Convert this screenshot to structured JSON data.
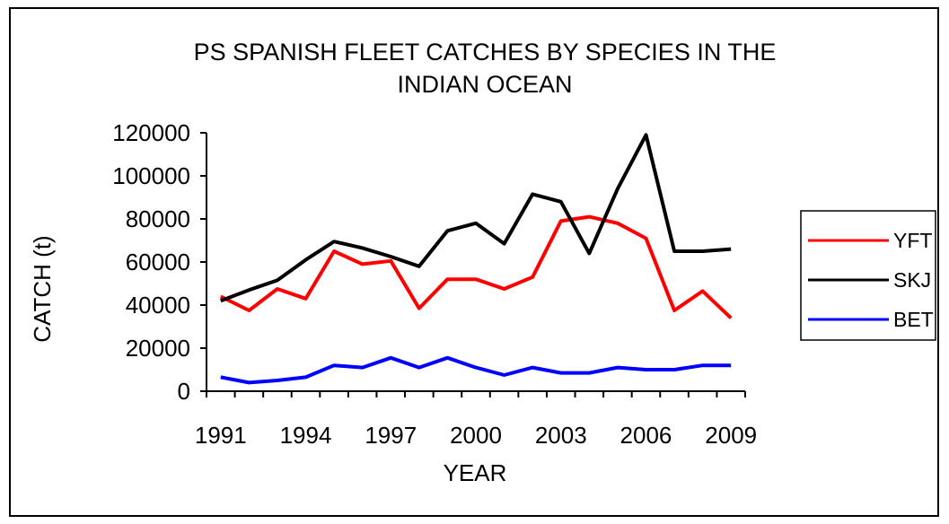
{
  "chart_data": {
    "type": "line",
    "title": [
      "PS SPANISH FLEET CATCHES BY SPECIES IN THE",
      "INDIAN OCEAN"
    ],
    "xlabel": "YEAR",
    "ylabel": "CATCH (t)",
    "x": [
      1991,
      1992,
      1993,
      1994,
      1995,
      1996,
      1997,
      1998,
      1999,
      2000,
      2001,
      2002,
      2003,
      2004,
      2005,
      2006,
      2007,
      2008,
      2009
    ],
    "x_tick_labels": [
      "1991",
      "1994",
      "1997",
      "2000",
      "2003",
      "2006",
      "2009"
    ],
    "y_tick_labels": [
      "0",
      "20000",
      "40000",
      "60000",
      "80000",
      "100000",
      "120000"
    ],
    "ylim": [
      0,
      120000
    ],
    "grid": false,
    "legend_position": "right",
    "series": [
      {
        "name": "YFT",
        "color": "#ff0000",
        "values": [
          44000,
          37500,
          47500,
          43000,
          65000,
          59000,
          60500,
          38500,
          52000,
          52000,
          47500,
          53000,
          79000,
          81000,
          78000,
          71000,
          37500,
          46500,
          34000
        ]
      },
      {
        "name": "SKJ",
        "color": "#000000",
        "values": [
          42000,
          47000,
          51500,
          61000,
          69500,
          66500,
          62500,
          58000,
          74500,
          78000,
          68500,
          91500,
          88000,
          64000,
          94000,
          119000,
          65000,
          65000,
          66000
        ]
      },
      {
        "name": "BET",
        "color": "#0000ff",
        "values": [
          6500,
          4000,
          5000,
          6500,
          12000,
          11000,
          15500,
          11000,
          15500,
          11000,
          7500,
          11000,
          8500,
          8500,
          11000,
          10000,
          10000,
          12000,
          12000
        ]
      }
    ]
  }
}
